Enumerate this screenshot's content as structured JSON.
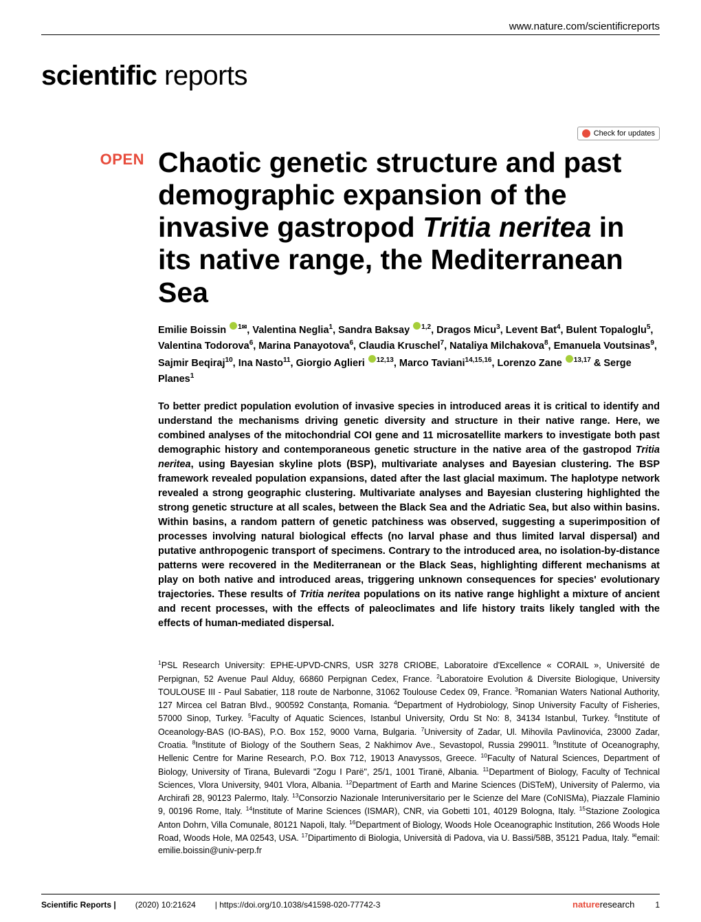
{
  "header": {
    "url": "www.nature.com/scientificreports",
    "check_updates": "Check for updates"
  },
  "journal": {
    "logo_bold": "scientific",
    "logo_light": " reports"
  },
  "badge": {
    "open": "OPEN"
  },
  "article": {
    "title_part1": "Chaotic genetic structure and past demographic expansion of the invasive gastropod ",
    "title_italic": "Tritia neritea",
    "title_part2": " in its native range, the Mediterranean Sea",
    "authors_html": "Emilie Boissin <span class=\"orcid\" data-name=\"orcid-icon\" data-interactable=\"false\"></span><sup>1</sup><span class=\"mail-icon\" data-name=\"mail-icon\" data-interactable=\"false\">✉</span>, Valentina Neglia<sup>1</sup>, Sandra Baksay <span class=\"orcid\" data-name=\"orcid-icon\" data-interactable=\"false\"></span><sup>1,2</sup>, Dragos Micu<sup>3</sup>, Levent Bat<sup>4</sup>, Bulent Topaloglu<sup>5</sup>, Valentina Todorova<sup>6</sup>, Marina Panayotova<sup>6</sup>, Claudia Kruschel<sup>7</sup>, Nataliya Milchakova<sup>8</sup>, Emanuela Voutsinas<sup>9</sup>, Sajmir Beqiraj<sup>10</sup>, Ina Nasto<sup>11</sup>, Giorgio Aglieri <span class=\"orcid\" data-name=\"orcid-icon\" data-interactable=\"false\"></span><sup>12,13</sup>, Marco Taviani<sup>14,15,16</sup>, Lorenzo Zane <span class=\"orcid\" data-name=\"orcid-icon\" data-interactable=\"false\"></span><sup>13,17</sup> & Serge Planes<sup>1</sup>",
    "abstract": "To better predict population evolution of invasive species in introduced areas it is critical to identify and understand the mechanisms driving genetic diversity and structure in their native range. Here, we combined analyses of the mitochondrial COI gene and 11 microsatellite markers to investigate both past demographic history and contemporaneous genetic structure in the native area of the gastropod <span class=\"italic\">Tritia neritea</span>, using Bayesian skyline plots (BSP), multivariate analyses and Bayesian clustering. The BSP framework revealed population expansions, dated after the last glacial maximum. The haplotype network revealed a strong geographic clustering. Multivariate analyses and Bayesian clustering highlighted the strong genetic structure at all scales, between the Black Sea and the Adriatic Sea, but also within basins. Within basins, a random pattern of genetic patchiness was observed, suggesting a superimposition of processes involving natural biological effects (no larval phase and thus limited larval dispersal) and putative anthropogenic transport of specimens. Contrary to the introduced area, no isolation-by-distance patterns were recovered in the Mediterranean or the Black Seas, highlighting different mechanisms at play on both native and introduced areas, triggering unknown consequences for species' evolutionary trajectories. These results of <span class=\"italic\">Tritia neritea</span> populations on its native range highlight a mixture of ancient and recent processes, with the effects of paleoclimates and life history traits likely tangled with the effects of human-mediated dispersal.",
    "affiliations": "<sup>1</sup>PSL Research University: EPHE-UPVD-CNRS, USR 3278 CRIOBE, Laboratoire d'Excellence « CORAIL », Université de Perpignan, 52 Avenue Paul Alduy, 66860 Perpignan Cedex, France. <sup>2</sup>Laboratoire Evolution & Diversite Biologique, University TOULOUSE III - Paul Sabatier, 118 route de Narbonne, 31062 Toulouse Cedex 09, France. <sup>3</sup>Romanian Waters National Authority, 127 Mircea cel Batran Blvd., 900592 Constanța, Romania. <sup>4</sup>Department of Hydrobiology, Sinop University Faculty of Fisheries, 57000 Sinop, Turkey. <sup>5</sup>Faculty of Aquatic Sciences, Istanbul University, Ordu St No: 8, 34134 Istanbul, Turkey. <sup>6</sup>Institute of Oceanology-BAS (IO-BAS), P.O. Box 152, 9000 Varna, Bulgaria. <sup>7</sup>University of Zadar, Ul. Mihovila Pavlinovića, 23000 Zadar, Croatia. <sup>8</sup>Institute of Biology of the Southern Seas, 2 Nakhimov Ave., Sevastopol, Russia 299011. <sup>9</sup>Institute of Oceanography, Hellenic Centre for Marine Research, P.O. Box 712, 19013 Anavyssos, Greece. <sup>10</sup>Faculty of Natural Sciences, Department of Biology, University of Tirana, Bulevardi \"Zogu I Parë\", 25/1, 1001 Tiranë, Albania. <sup>11</sup>Department of Biology, Faculty of Technical Sciences, Vlora University, 9401 Vlora, Albania. <sup>12</sup>Department of Earth and Marine Sciences (DiSTeM), University of Palermo, via Archirafi 28, 90123 Palermo, Italy. <sup>13</sup>Consorzio Nazionale Interuniversitario per le Scienze del Mare (CoNISMa), Piazzale Flaminio 9, 00196 Rome, Italy. <sup>14</sup>Institute of Marine Sciences (ISMAR), CNR, via Gobetti 101, 40129 Bologna, Italy. <sup>15</sup>Stazione Zoologica Anton Dohrn, Villa Comunale, 80121 Napoli, Italy. <sup>16</sup>Department of Biology, Woods Hole Oceanographic Institution, 266 Woods Hole Road, Woods Hole, MA 02543, USA. <sup>17</sup>Dipartimento di Biologia, Università di Padova, via U. Bassi/58B, 35121 Padua, Italy. <sup>✉</sup>email: emilie.boissin@univ-perp.fr"
  },
  "footer": {
    "journal": "Scientific Reports |",
    "citation": "(2020) 10:21624",
    "doi": "| https://doi.org/10.1038/s41598-020-77742-3",
    "publisher_bold": "nature",
    "publisher_light": "research",
    "page": "1"
  },
  "colors": {
    "accent": "#e74c3c",
    "orcid_green": "#a6ce39",
    "text": "#000000",
    "background": "#ffffff"
  },
  "typography": {
    "title_size": 41,
    "title_weight": 800,
    "authors_size": 14.5,
    "abstract_size": 14.5,
    "affil_size": 12.5,
    "logo_size": 40
  }
}
